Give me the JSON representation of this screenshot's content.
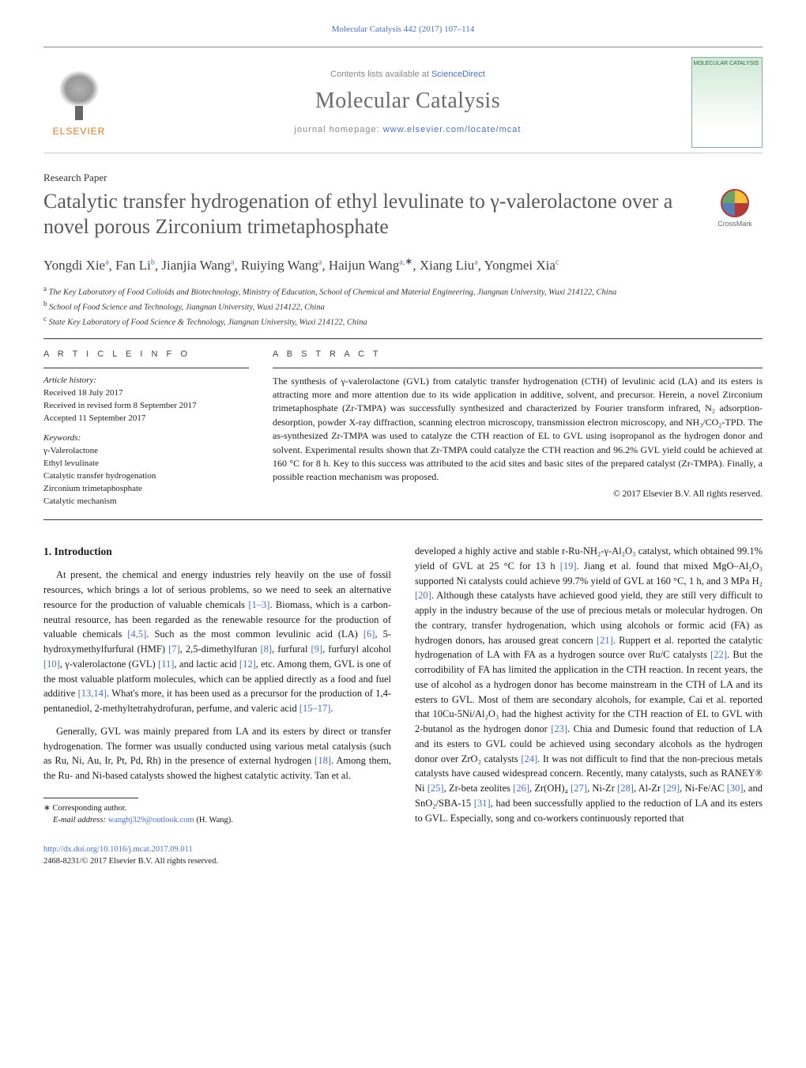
{
  "journal": {
    "running_header": "Molecular Catalysis 442 (2017) 107–114",
    "contents_line_pre": "Contents lists available at ",
    "contents_link": "ScienceDirect",
    "name": "Molecular Catalysis",
    "homepage_pre": "journal homepage: ",
    "homepage_url": "www.elsevier.com/locate/mcat",
    "publisher_brand": "ELSEVIER",
    "cover_label": "MOLECULAR\nCATALYSIS"
  },
  "paper_type": "Research Paper",
  "title": "Catalytic transfer hydrogenation of ethyl levulinate to γ-valerolactone over a novel porous Zirconium trimetaphosphate",
  "crossmark_label": "CrossMark",
  "authors_html_parts": {
    "a1": "Yongdi Xie",
    "a1_sup": "a",
    "a2": "Fan Li",
    "a2_sup": "b",
    "a3": "Jianjia Wang",
    "a3_sup": "a",
    "a4": "Ruiying Wang",
    "a4_sup": "a",
    "a5": "Haijun Wang",
    "a5_sup": "a,",
    "a5_star": "∗",
    "a6": "Xiang Liu",
    "a6_sup": "a",
    "a7": "Yongmei Xia",
    "a7_sup": "c"
  },
  "affiliations": {
    "a": {
      "sup": "a",
      "text": "The Key Laboratory of Food Colloids and Biotechnology, Ministry of Education, School of Chemical and Material Engineering, Jiangnan University, Wuxi 214122, China"
    },
    "b": {
      "sup": "b",
      "text": "School of Food Science and Technology, Jiangnan University, Wuxi 214122, China"
    },
    "c": {
      "sup": "c",
      "text": "State Key Laboratory of Food Science & Technology, Jiangnan University, Wuxi 214122, China"
    }
  },
  "article_info": {
    "head": "A R T I C L E   I N F O",
    "history_head": "Article history:",
    "received": "Received 18 July 2017",
    "revised": "Received in revised form 8 September 2017",
    "accepted": "Accepted 11 September 2017",
    "keywords_head": "Keywords:",
    "kw1": "γ-Valerolactone",
    "kw2": "Ethyl levulinate",
    "kw3": "Catalytic transfer hydrogenation",
    "kw4": "Zirconium trimetaphosphate",
    "kw5": "Catalytic mechanism"
  },
  "abstract": {
    "head": "A B S T R A C T",
    "text": "The synthesis of γ-valerolactone (GVL) from catalytic transfer hydrogenation (CTH) of levulinic acid (LA) and its esters is attracting more and more attention due to its wide application in additive, solvent, and precursor. Herein, a novel Zirconium trimetaphosphate (Zr-TMPA) was successfully synthesized and characterized by Fourier transform infrared, N₂ adsorption-desorption, powder X-ray diffraction, scanning electron microscopy, transmission electron microscopy, and NH₃/CO₂-TPD. The as-synthesized Zr-TMPA was used to catalyze the CTH reaction of EL to GVL using isopropanol as the hydrogen donor and solvent. Experimental results shown that Zr-TMPA could catalyze the CTH reaction and 96.2% GVL yield could be achieved at 160 °C for 8 h. Key to this success was attributed to the acid sites and basic sites of the prepared catalyst (Zr-TMPA). Finally, a possible reaction mechanism was proposed.",
    "copyright": "© 2017 Elsevier B.V. All rights reserved."
  },
  "body": {
    "intro_head": "1. Introduction",
    "p1": "At present, the chemical and energy industries rely heavily on the use of fossil resources, which brings a lot of serious problems, so we need to seek an alternative resource for the production of valuable chemicals [1–3]. Biomass, which is a carbon-neutral resource, has been regarded as the renewable resource for the production of valuable chemicals [4,5]. Such as the most common levulinic acid (LA) [6], 5-hydroxymethylfurfural (HMF) [7], 2,5-dimethylfuran [8], furfural [9], furfuryl alcohol [10], γ-valerolactone (GVL) [11], and lactic acid [12], etc. Among them, GVL is one of the most valuable platform molecules, which can be applied directly as a food and fuel additive [13,14]. What's more, it has been used as a precursor for the production of 1,4-pentanediol, 2-methyltetrahydrofuran, perfume, and valeric acid [15–17].",
    "p2": "Generally, GVL was mainly prepared from LA and its esters by direct or transfer hydrogenation. The former was usually conducted using various metal catalysis (such as Ru, Ni, Au, Ir, Pt, Pd, Rh) in the presence of external hydrogen [18]. Among them, the Ru- and Ni-based catalysts showed the highest catalytic activity. Tan et al.",
    "p3": "developed a highly active and stable r-Ru-NH₂-γ-Al₂O₃ catalyst, which obtained 99.1% yield of GVL at 25 °C for 13 h [19]. Jiang et al. found that mixed MgO–Al₂O₃ supported Ni catalysts could achieve 99.7% yield of GVL at 160 °C, 1 h, and 3 MPa H₂ [20]. Although these catalysts have achieved good yield, they are still very difficult to apply in the industry because of the use of precious metals or molecular hydrogen. On the contrary, transfer hydrogenation, which using alcohols or formic acid (FA) as hydrogen donors, has aroused great concern [21]. Ruppert et al. reported the catalytic hydrogenation of LA with FA as a hydrogen source over Ru/C catalysts [22]. But the corrodibility of FA has limited the application in the CTH reaction. In recent years, the use of alcohol as a hydrogen donor has become mainstream in the CTH of LA and its esters to GVL. Most of them are secondary alcohols, for example, Cai et al. reported that 10Cu-5Ni/Al₂O₃ had the highest activity for the CTH reaction of EL to GVL with 2-butanol as the hydrogen donor [23]. Chia and Dumesic found that reduction of LA and its esters to GVL could be achieved using secondary alcohols as the hydrogen donor over ZrO₂ catalysts [24]. It was not difficult to find that the non-precious metals catalysts have caused widespread concern. Recently, many catalysts, such as RANEY® Ni [25], Zr-beta zeolites [26], Zr(OH)₄ [27], Ni-Zr [28], Al-Zr [29], Ni-Fe/AC [30], and SnO₂/SBA-15 [31], had been successfully applied to the reduction of LA and its esters to GVL. Especially, song and co-workers continuously reported that"
  },
  "refs": {
    "r1_3": "[1–3]",
    "r4_5": "[4,5]",
    "r6": "[6]",
    "r7": "[7]",
    "r8": "[8]",
    "r9": "[9]",
    "r10": "[10]",
    "r11": "[11]",
    "r12": "[12]",
    "r13_14": "[13,14]",
    "r15_17": "[15–17]",
    "r18": "[18]",
    "r19": "[19]",
    "r20": "[20]",
    "r21": "[21]",
    "r22": "[22]",
    "r23": "[23]",
    "r24": "[24]",
    "r25": "[25]",
    "r26": "[26]",
    "r27": "[27]",
    "r28": "[28]",
    "r29": "[29]",
    "r30": "[30]",
    "r31": "[31]"
  },
  "footnotes": {
    "corr_marker": "∗",
    "corr_label": "Corresponding author.",
    "email_label": "E-mail address:",
    "email": "wanghj329@outlook.com",
    "email_who": "(H. Wang)."
  },
  "footer": {
    "doi": "http://dx.doi.org/10.1016/j.mcat.2017.09.011",
    "issn_line": "2468-8231/© 2017 Elsevier B.V. All rights reserved."
  },
  "colors": {
    "link": "#4a6fc4",
    "brand_orange": "#e67722",
    "title_gray": "#5a5a5a",
    "body_text": "#1a1a1a",
    "muted": "#888888"
  },
  "typography": {
    "title_pt": 26,
    "journal_name_pt": 28,
    "authors_pt": 17,
    "body_pt": 12.5,
    "abstract_pt": 12,
    "footnote_pt": 10.5
  }
}
